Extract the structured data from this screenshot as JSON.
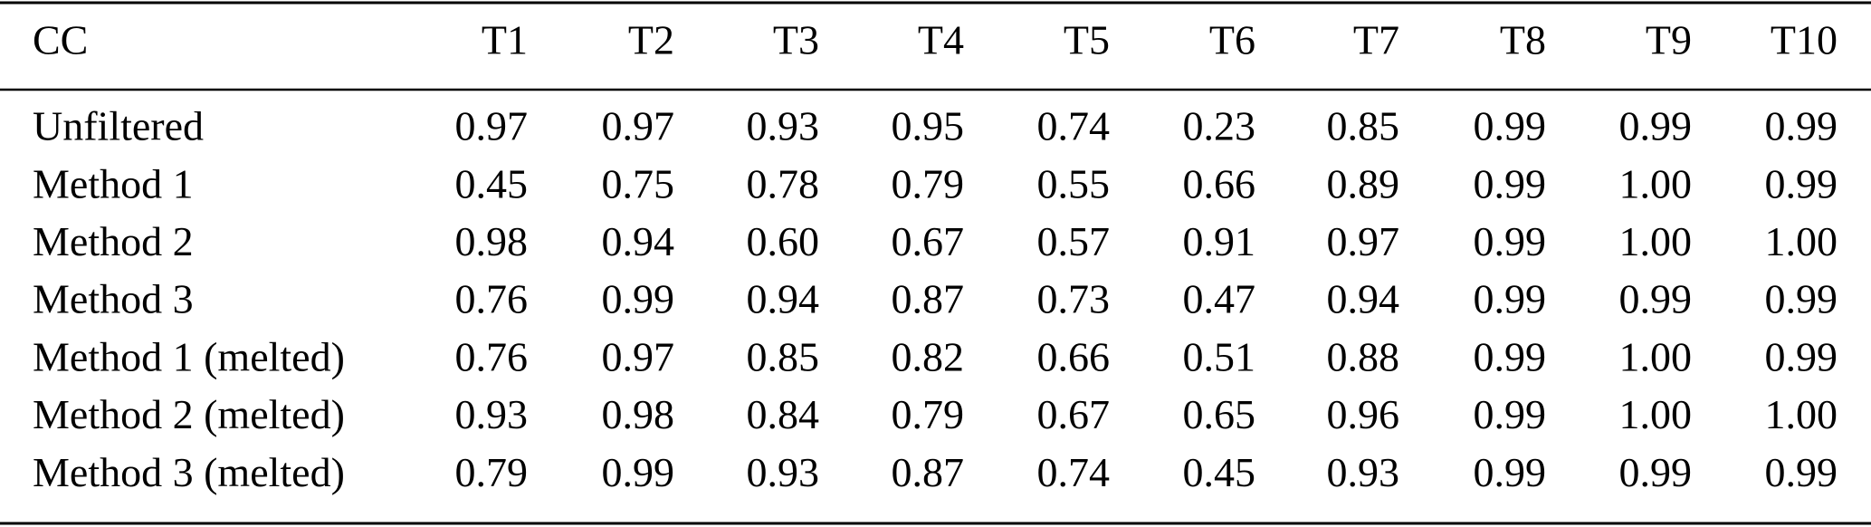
{
  "table": {
    "header": [
      "CC",
      "T1",
      "T2",
      "T3",
      "T4",
      "T5",
      "T6",
      "T7",
      "T8",
      "T9",
      "T10"
    ],
    "rows": [
      [
        "Unfiltered",
        "0.97",
        "0.97",
        "0.93",
        "0.95",
        "0.74",
        "0.23",
        "0.85",
        "0.99",
        "0.99",
        "0.99"
      ],
      [
        "Method 1",
        "0.45",
        "0.75",
        "0.78",
        "0.79",
        "0.55",
        "0.66",
        "0.89",
        "0.99",
        "1.00",
        "0.99"
      ],
      [
        "Method 2",
        "0.98",
        "0.94",
        "0.60",
        "0.67",
        "0.57",
        "0.91",
        "0.97",
        "0.99",
        "1.00",
        "1.00"
      ],
      [
        "Method 3",
        "0.76",
        "0.99",
        "0.94",
        "0.87",
        "0.73",
        "0.47",
        "0.94",
        "0.99",
        "0.99",
        "0.99"
      ],
      [
        "Method 1 (melted)",
        "0.76",
        "0.97",
        "0.85",
        "0.82",
        "0.66",
        "0.51",
        "0.88",
        "0.99",
        "1.00",
        "0.99"
      ],
      [
        "Method 2 (melted)",
        "0.93",
        "0.98",
        "0.84",
        "0.79",
        "0.67",
        "0.65",
        "0.96",
        "0.99",
        "1.00",
        "1.00"
      ],
      [
        "Method 3 (melted)",
        "0.79",
        "0.99",
        "0.93",
        "0.87",
        "0.74",
        "0.45",
        "0.93",
        "0.99",
        "0.99",
        "0.99"
      ]
    ]
  }
}
